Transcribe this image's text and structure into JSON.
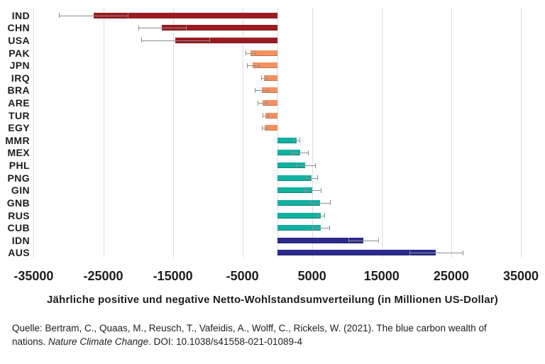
{
  "chart_data": {
    "type": "bar",
    "orientation": "horizontal",
    "title": "",
    "xlabel": "Jährliche positive und negative Netto-Wohlstandsumverteilung (in Millionen US-Dollar)",
    "ylabel": "",
    "unit": "Millionen US-Dollar",
    "xlim": [
      -35000,
      35000
    ],
    "grid": true,
    "x_ticks": [
      -35000,
      -25000,
      -15000,
      -5000,
      5000,
      15000,
      25000,
      35000
    ],
    "categories": [
      "IND",
      "CHN",
      "USA",
      "PAK",
      "JPN",
      "IRQ",
      "BRA",
      "ARE",
      "TUR",
      "EGY",
      "MMR",
      "MEX",
      "PHL",
      "PNG",
      "GIN",
      "GNB",
      "RUS",
      "CUB",
      "IDN",
      "AUS"
    ],
    "values": [
      -26400,
      -16550,
      -14650,
      -3850,
      -3500,
      -1950,
      -2250,
      -2150,
      -1750,
      -1850,
      2750,
      3250,
      4050,
      4900,
      5050,
      6150,
      6250,
      6250,
      12400,
      22800
    ],
    "errors": [
      4950,
      3450,
      4900,
      700,
      900,
      400,
      1000,
      650,
      400,
      400,
      450,
      1200,
      1400,
      800,
      1150,
      1400,
      500,
      1200,
      2150,
      3850
    ],
    "groups": [
      "negative_large",
      "negative_large",
      "negative_large",
      "negative_small",
      "negative_small",
      "negative_small",
      "negative_small",
      "negative_small",
      "negative_small",
      "negative_small",
      "positive_small",
      "positive_small",
      "positive_small",
      "positive_small",
      "positive_small",
      "positive_small",
      "positive_small",
      "positive_small",
      "positive_large",
      "positive_large"
    ],
    "palette": {
      "negative_large": "#9c1b21",
      "negative_small": "#f6915f",
      "positive_small": "#12b0a0",
      "positive_large": "#2b2b8e"
    }
  },
  "colors": {
    "background": "#ffffff",
    "gridline": "#dedede",
    "error_bar": "#8f8f8f",
    "text": "#1d1d1b"
  },
  "source": {
    "line1": "Quelle: Bertram, C., Quaas, M., Reusch, T., Vafeidis, A., Wolff, C., Rickels, W. (2021). The blue carbon wealth of",
    "line2_pre": "nations. ",
    "line2_italic": "Nature Climate Change",
    "line2_post": ". DOI: 10.1038/s41558-021-01089-4"
  }
}
